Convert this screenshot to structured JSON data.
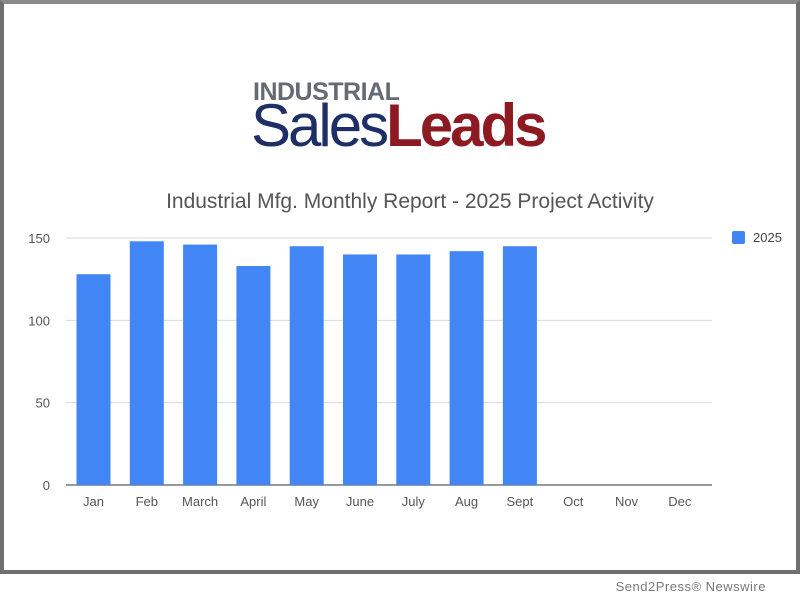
{
  "logo": {
    "top_text": "INDUSTRIAL",
    "sales_text": "Sales",
    "leads_text": "Leads",
    "colors": {
      "top": "#666a73",
      "sales": "#1d2f66",
      "leads": "#8d1a22"
    }
  },
  "credit": "Send2Press® Newswire",
  "chart_data": {
    "type": "bar",
    "title": "Industrial Mfg. Monthly Report - 2025 Project Activity",
    "xlabel": "",
    "ylabel": "",
    "categories": [
      "Jan",
      "Feb",
      "March",
      "April",
      "May",
      "June",
      "July",
      "Aug",
      "Sept",
      "Oct",
      "Nov",
      "Dec"
    ],
    "series": [
      {
        "name": "2025",
        "color": "#4285f4",
        "values": [
          128,
          148,
          146,
          133,
          145,
          140,
          140,
          142,
          145,
          null,
          null,
          null
        ]
      }
    ],
    "ylim": [
      0,
      150
    ],
    "yticks": [
      0,
      50,
      100,
      150
    ],
    "grid": true,
    "legend": "right"
  }
}
